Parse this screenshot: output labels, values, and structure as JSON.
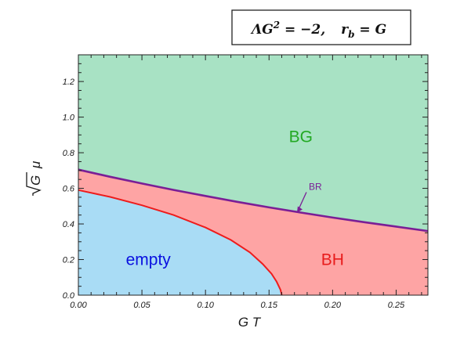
{
  "chart_data": {
    "type": "area",
    "title": "ΛG² = −2,   r_b = G",
    "title_parts": {
      "lambda_lhs": "ΛG",
      "lambda_exp": "2",
      "lambda_rhs": " = −2,",
      "rb_lhs": "r",
      "rb_sub": "b",
      "rb_rhs": " = G"
    },
    "xlabel": "G T",
    "ylabel_radical": "G",
    "ylabel_symbol": "μ",
    "xlim": [
      0,
      0.275
    ],
    "ylim": [
      0,
      1.35
    ],
    "x_ticks": [
      0,
      0.05,
      0.1,
      0.15,
      0.2,
      0.25
    ],
    "x_tick_labels": [
      "0.00",
      "0.05",
      "0.10",
      "0.15",
      "0.20",
      "0.25"
    ],
    "y_ticks": [
      0,
      0.2,
      0.4,
      0.6,
      0.8,
      1.0,
      1.2
    ],
    "y_tick_labels": [
      "0.0",
      "0.2",
      "0.4",
      "0.6",
      "0.8",
      "1.0",
      "1.2"
    ],
    "grid": false,
    "regions": [
      {
        "label": "BG",
        "color": "#a8e2c4",
        "label_color": "#22a822",
        "label_at": [
          0.175,
          0.86
        ]
      },
      {
        "label": "BH",
        "color": "#fea4a4",
        "label_color": "#e81c1c",
        "label_at": [
          0.2,
          0.17
        ]
      },
      {
        "label": "empty",
        "color": "#a9dcf5",
        "label_color": "#0a10e0",
        "label_at": [
          0.055,
          0.17
        ]
      }
    ],
    "series": [
      {
        "name": "BR",
        "color": "#7a1e96",
        "x": [
          0,
          0.025,
          0.05,
          0.075,
          0.1,
          0.125,
          0.15,
          0.175,
          0.2,
          0.225,
          0.25,
          0.275
        ],
        "y": [
          0.705,
          0.665,
          0.627,
          0.591,
          0.557,
          0.524,
          0.493,
          0.464,
          0.436,
          0.41,
          0.385,
          0.36
        ]
      },
      {
        "name": "",
        "color": "#ee1c1c",
        "x": [
          0,
          0.025,
          0.05,
          0.075,
          0.1,
          0.12,
          0.135,
          0.145,
          0.152,
          0.156,
          0.159,
          0.16
        ],
        "y": [
          0.59,
          0.552,
          0.505,
          0.45,
          0.38,
          0.31,
          0.24,
          0.175,
          0.12,
          0.075,
          0.03,
          0
        ]
      }
    ],
    "annotations": [
      {
        "text": "BR",
        "color": "#7a1e96",
        "arrow_to": [
          0.172,
          0.464
        ]
      }
    ]
  }
}
